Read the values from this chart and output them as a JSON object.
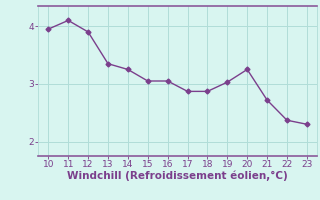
{
  "x": [
    10,
    11,
    12,
    13,
    14,
    15,
    16,
    17,
    18,
    19,
    20,
    21,
    22,
    23
  ],
  "y": [
    3.95,
    4.1,
    3.9,
    3.35,
    3.25,
    3.05,
    3.05,
    2.87,
    2.87,
    3.03,
    3.25,
    2.72,
    2.37,
    2.3
  ],
  "line_color": "#7b3f8c",
  "marker": "D",
  "marker_size": 2.5,
  "background_color": "#d8f5f0",
  "grid_color": "#b0ddd8",
  "xlabel": "Windchill (Refroidissement éolien,°C)",
  "xlabel_color": "#7b3f8c",
  "xlabel_fontsize": 7.5,
  "tick_color": "#7b3f8c",
  "tick_fontsize": 6.5,
  "ylim": [
    1.75,
    4.35
  ],
  "xlim": [
    9.5,
    23.5
  ],
  "yticks": [
    2,
    3,
    4
  ],
  "xticks": [
    10,
    11,
    12,
    13,
    14,
    15,
    16,
    17,
    18,
    19,
    20,
    21,
    22,
    23
  ],
  "spine_color": "#8b5a9a",
  "linewidth": 1.0
}
